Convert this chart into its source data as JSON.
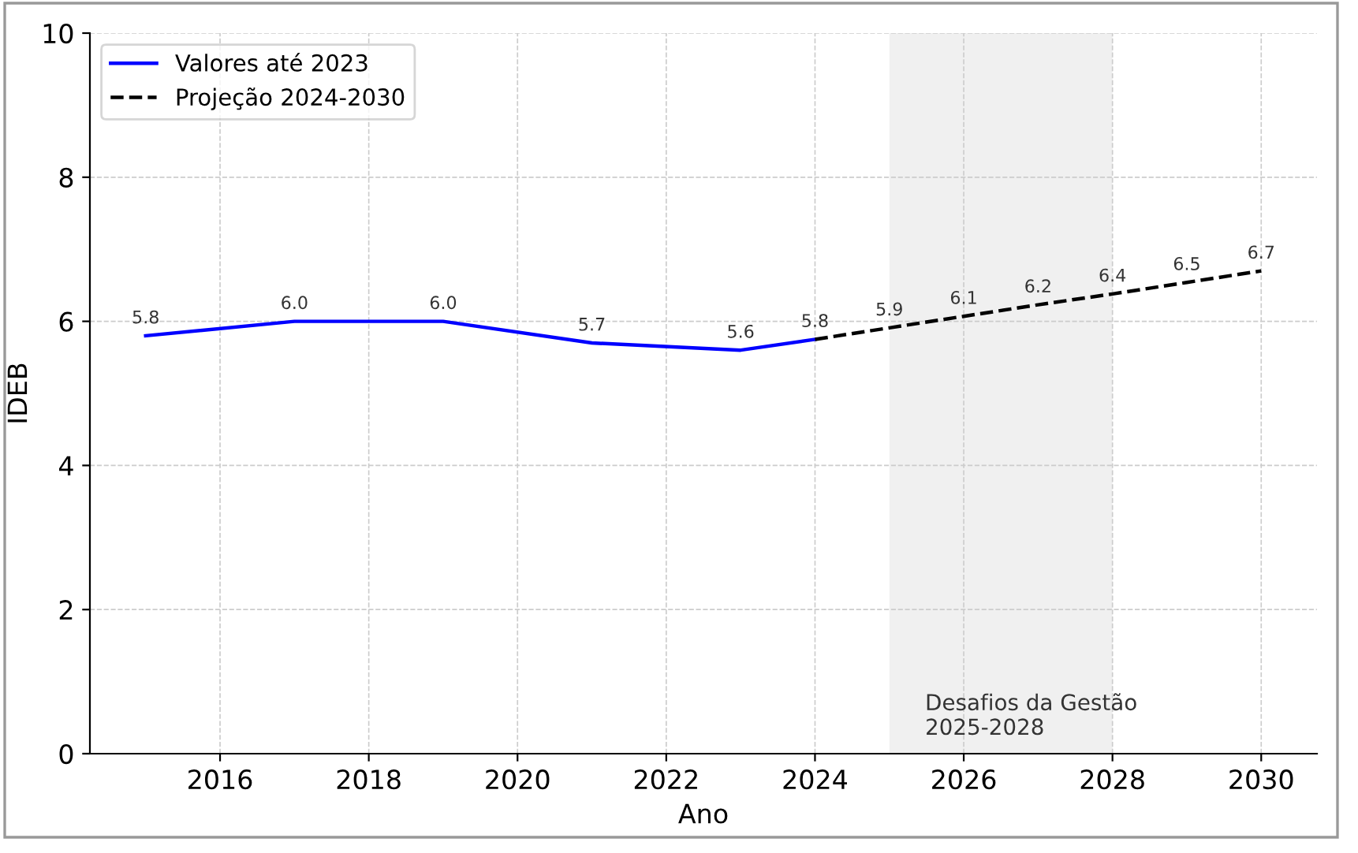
{
  "chart_data": {
    "type": "line",
    "xlabel": "Ano",
    "ylabel": "IDEB",
    "series": [
      {
        "name": "Valores até 2023",
        "color": "#0000ff",
        "line_style": "solid",
        "x": [
          2015,
          2017,
          2019,
          2021,
          2023,
          2024
        ],
        "values": [
          5.8,
          6.0,
          6.0,
          5.7,
          5.6,
          5.75
        ],
        "value_labels": [
          "5.8",
          "6.0",
          "6.0",
          "5.7",
          "5.6",
          "5.8"
        ]
      },
      {
        "name": "Projeção 2024-2030",
        "color": "#000000",
        "line_style": "dashed",
        "x": [
          2024,
          2025,
          2026,
          2027,
          2028,
          2029,
          2030
        ],
        "values": [
          5.75,
          5.91,
          6.07,
          6.23,
          6.38,
          6.54,
          6.7
        ],
        "value_labels": [
          null,
          "5.9",
          "6.1",
          "6.2",
          "6.4",
          "6.5",
          "6.7"
        ]
      }
    ],
    "xlim": [
      2014.25,
      2030.75
    ],
    "xticks": [
      2016,
      2018,
      2020,
      2022,
      2024,
      2026,
      2028,
      2030
    ],
    "ylim": [
      0,
      10
    ],
    "yticks": [
      0,
      2,
      4,
      6,
      8,
      10
    ],
    "bands": [
      {
        "axis": "x",
        "from": 2025,
        "to": 2028,
        "label": "Desafios da Gestão\n2025-2028",
        "color": "#f0f0f0"
      }
    ],
    "grid": true,
    "legend": "top left"
  }
}
